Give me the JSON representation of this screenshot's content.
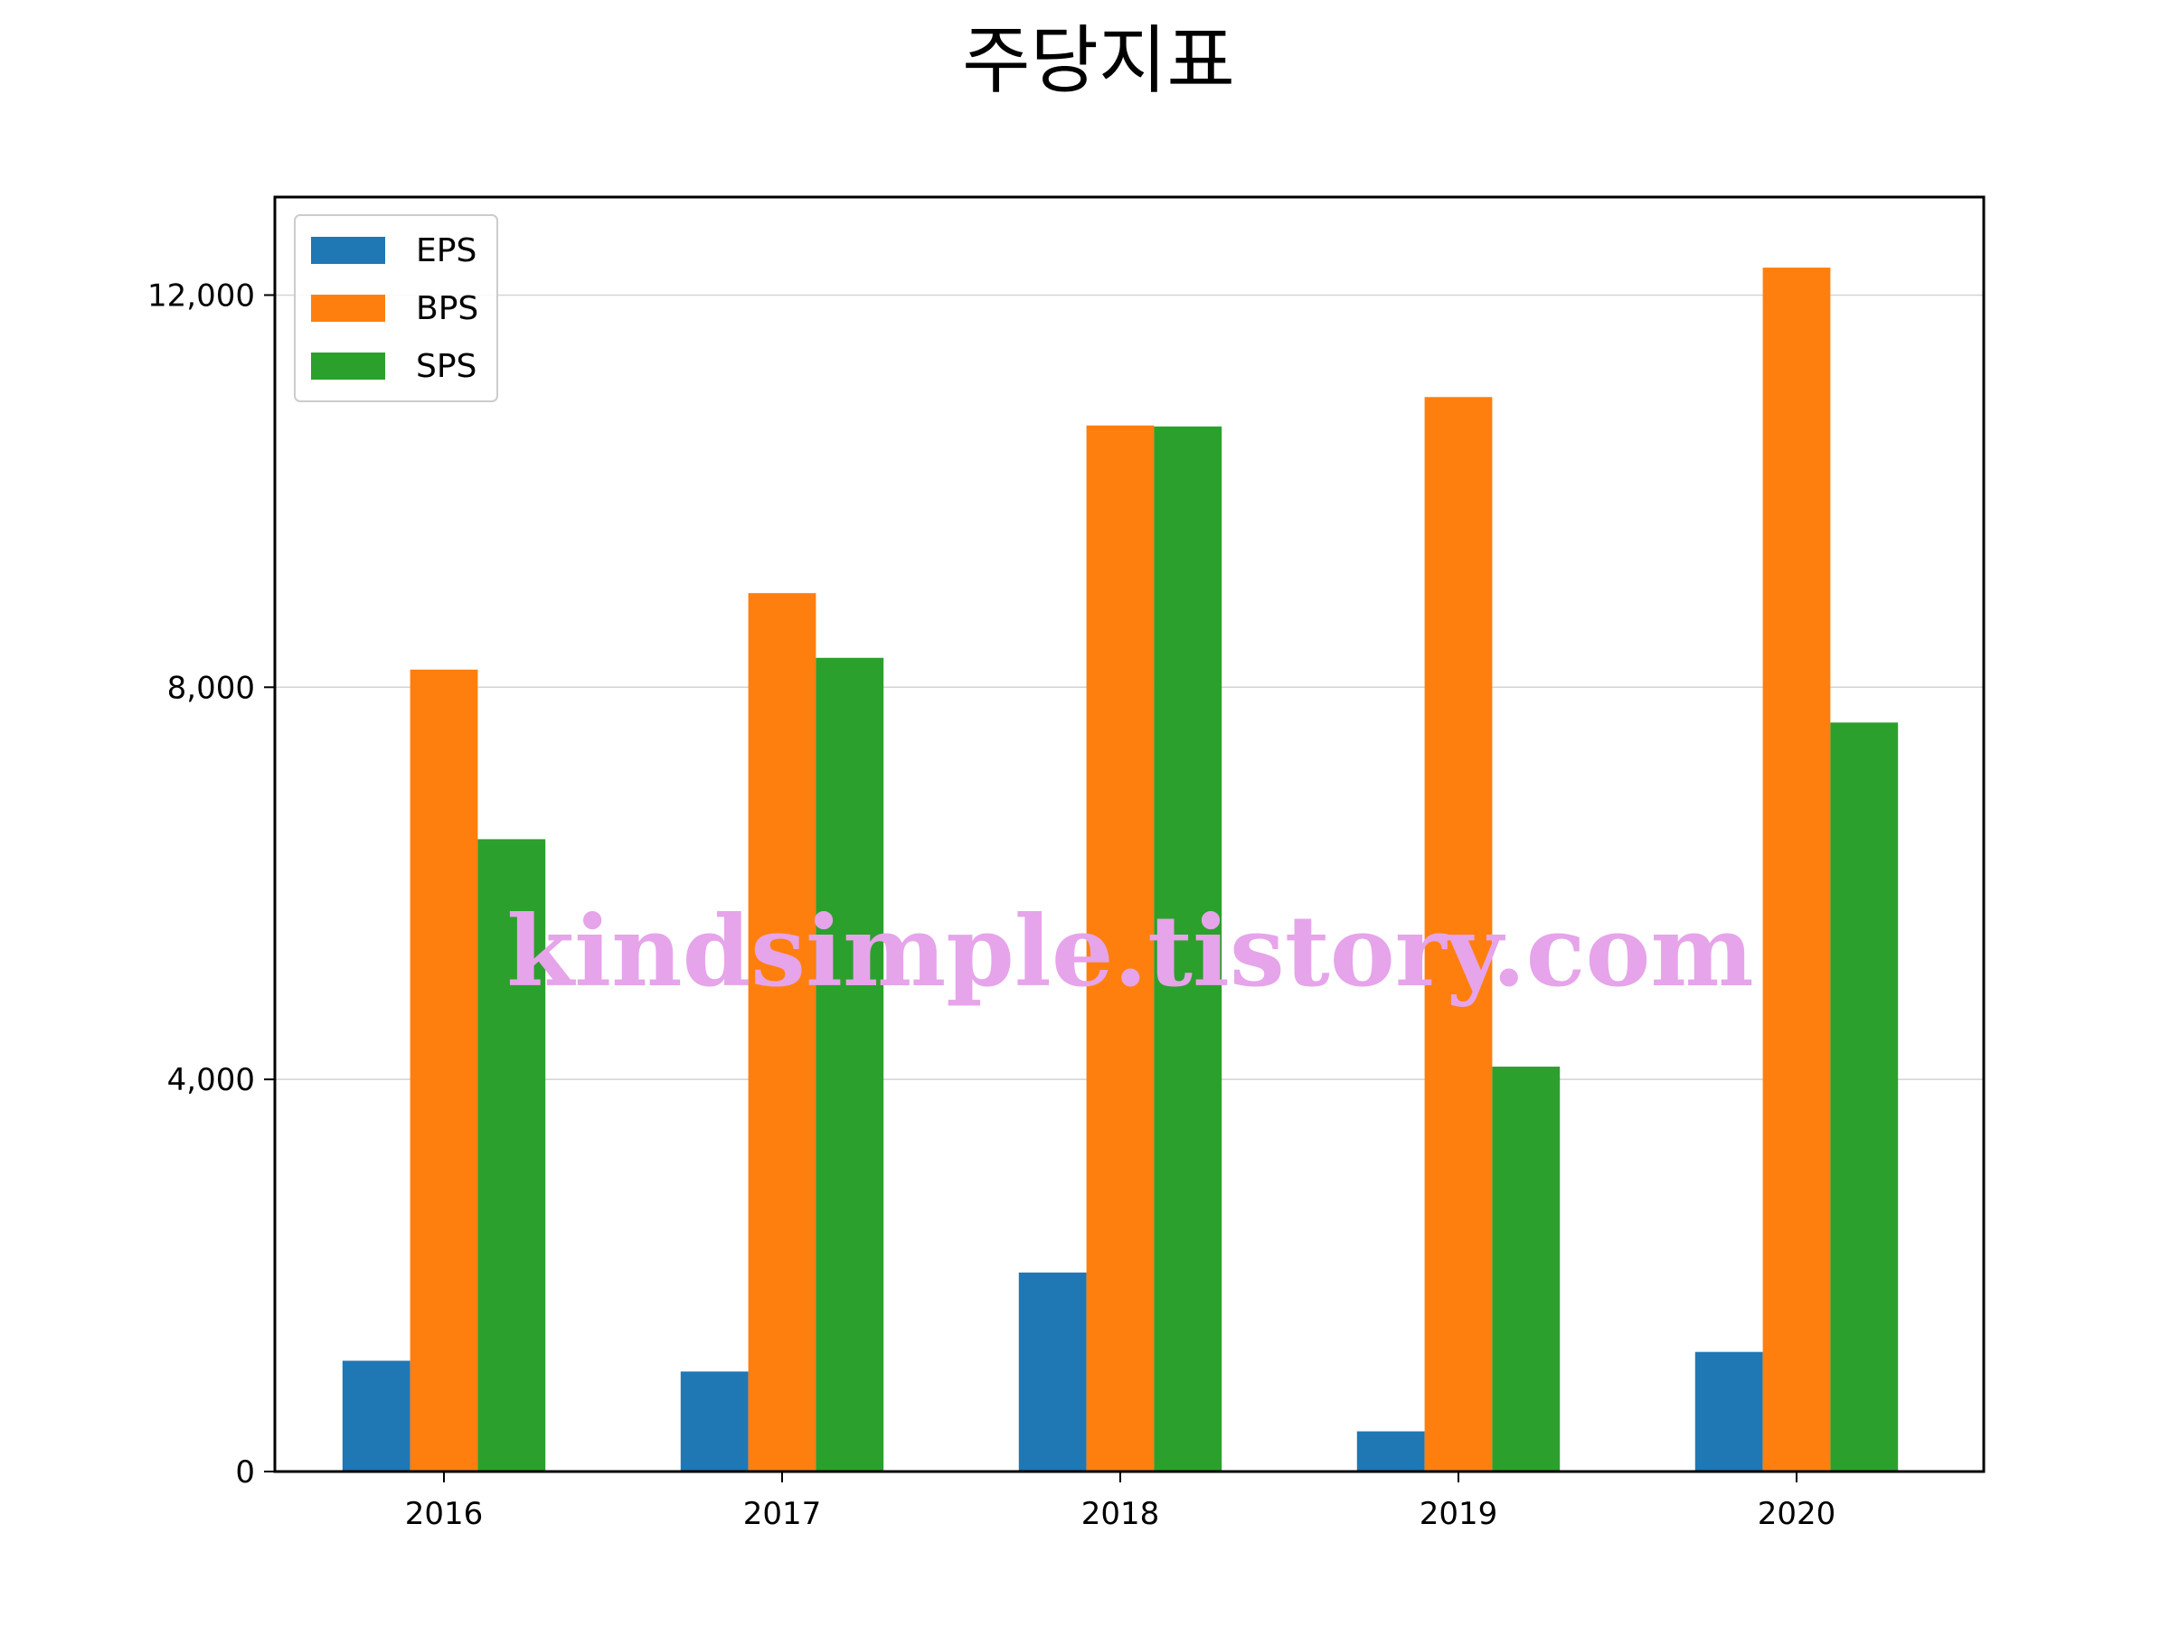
{
  "chart_data": {
    "type": "bar",
    "title": "주당지표",
    "xlabel": "",
    "ylabel": "",
    "categories": [
      "2016",
      "2017",
      "2018",
      "2019",
      "2020"
    ],
    "series": [
      {
        "name": "EPS",
        "color": "#1f77b4",
        "values": [
          1130,
          1020,
          2030,
          410,
          1220
        ]
      },
      {
        "name": "BPS",
        "color": "#ff7f0e",
        "values": [
          8180,
          8960,
          10670,
          10960,
          12280
        ]
      },
      {
        "name": "SPS",
        "color": "#2ca02c",
        "values": [
          6450,
          8300,
          10660,
          4130,
          7640
        ]
      }
    ],
    "ylim": [
      0,
      13000
    ],
    "yticks": [
      {
        "value": 0,
        "label": "0"
      },
      {
        "value": 4000,
        "label": "4,000"
      },
      {
        "value": 8000,
        "label": "8,000"
      },
      {
        "value": 12000,
        "label": "12,000"
      }
    ],
    "grid": "horizontal",
    "legend_position": "upper-left",
    "watermark": "kindsimple.tistory.com"
  }
}
